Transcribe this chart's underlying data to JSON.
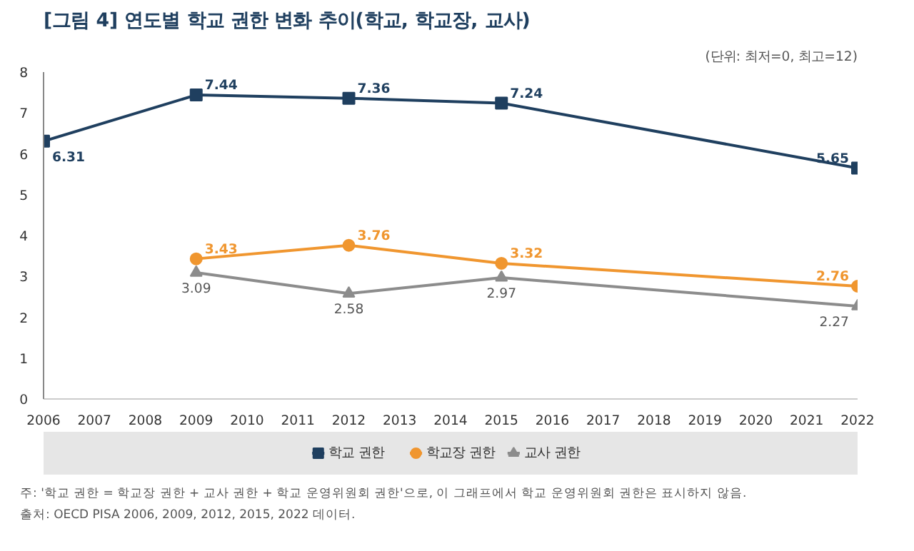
{
  "chart_data": {
    "type": "line",
    "title": "[그림 4]  연도별 학교 권한 변화 추이(학교, 학교장, 교사)",
    "subtitle": "(단위: 최저=0, 최고=12)",
    "x": [
      2006,
      2009,
      2012,
      2015,
      2022
    ],
    "series": [
      {
        "name": "학교 권한",
        "color": "#1f3f5f",
        "marker": "square",
        "values": [
          6.31,
          7.44,
          7.36,
          7.24,
          5.65
        ]
      },
      {
        "name": "학교장 권한",
        "color": "#f0962f",
        "marker": "circle",
        "values": [
          null,
          3.43,
          3.76,
          3.32,
          2.76
        ]
      },
      {
        "name": "교사 권한",
        "color": "#8c8c8c",
        "marker": "triangle",
        "values": [
          null,
          3.09,
          2.58,
          2.97,
          2.27
        ]
      }
    ],
    "xlim": [
      2006,
      2022
    ],
    "xticks": [
      2006,
      2007,
      2008,
      2009,
      2010,
      2011,
      2012,
      2013,
      2014,
      2015,
      2016,
      2017,
      2018,
      2019,
      2020,
      2021,
      2022
    ],
    "ylim": [
      0,
      8
    ],
    "yticks": [
      0,
      1,
      2,
      3,
      4,
      5,
      6,
      7,
      8
    ],
    "grid": false,
    "legend": "bottom",
    "data_labels": true,
    "line_style": "solid",
    "annotations": [
      "주: '학교 권한 = 학교장 권한 + 교사 권한 + 학교 운영위원회 권한'으로, 이 그래프에서 학교 운영위원회 권한은 표시하지 않음.",
      "출처: OECD PISA 2006, 2009, 2012, 2015, 2022 데이터."
    ]
  }
}
